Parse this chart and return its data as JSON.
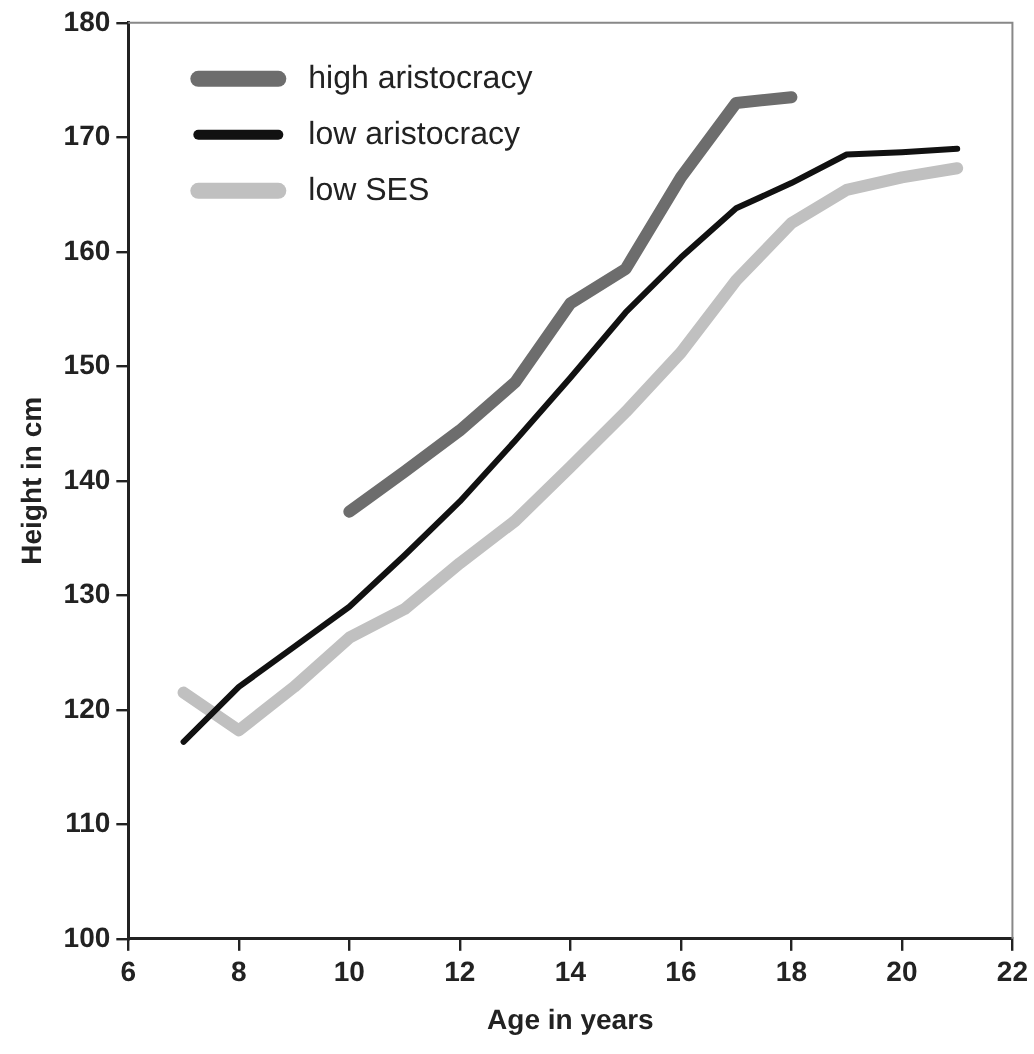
{
  "chart_data": {
    "type": "line",
    "xlabel": "Age in years",
    "ylabel": "Height in cm",
    "xlim": [
      6,
      22
    ],
    "xticks": [
      6,
      8,
      10,
      12,
      14,
      16,
      18,
      20,
      22
    ],
    "ylim": [
      100,
      180
    ],
    "yticks": [
      100,
      110,
      120,
      130,
      140,
      150,
      160,
      170,
      180
    ],
    "grid": false,
    "legend": "top left",
    "marker": "none",
    "line_style": "solid",
    "series": [
      {
        "name": "high aristocracy",
        "color": "#6d6d6d",
        "x": [
          10,
          11,
          12,
          13,
          14,
          15,
          16,
          17,
          18
        ],
        "values": [
          137.3,
          140.8,
          144.4,
          148.6,
          155.5,
          158.5,
          166.5,
          173,
          173.5
        ]
      },
      {
        "name": "low aristocracy",
        "color": "#111111",
        "x": [
          7,
          8,
          9,
          10,
          11,
          12,
          13,
          14,
          15,
          16,
          17,
          18,
          19,
          20,
          21
        ],
        "values": [
          117.2,
          122,
          125.5,
          129,
          133.5,
          138.2,
          143.5,
          149,
          154.7,
          159.5,
          163.8,
          166,
          168.5,
          168.7,
          169
        ]
      },
      {
        "name": "low SES",
        "color": "#c0c0c0",
        "x": [
          7,
          8,
          9,
          10,
          11,
          12,
          13,
          14,
          15,
          16,
          17,
          18,
          19,
          20,
          21
        ],
        "values": [
          121.5,
          118.2,
          122,
          126.3,
          128.8,
          132.8,
          136.5,
          141.2,
          146,
          151.2,
          157.5,
          162.5,
          165.4,
          166.5,
          167.3
        ]
      }
    ]
  }
}
